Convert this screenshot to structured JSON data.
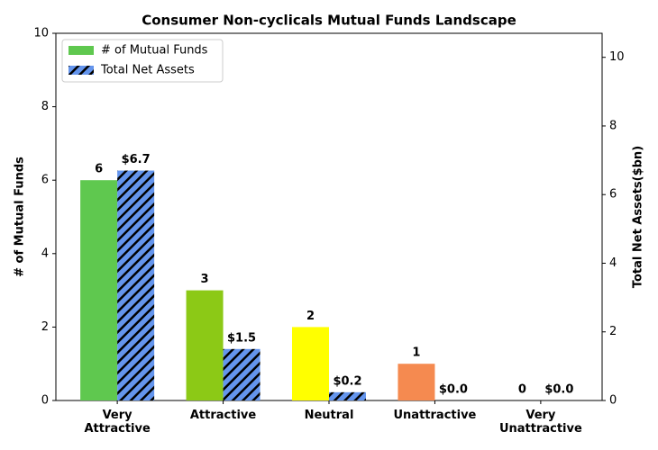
{
  "chart_data": {
    "type": "bar",
    "title": "Consumer Non-cyclicals Mutual Funds Landscape",
    "categories": [
      "Very\nAttractive",
      "Attractive",
      "Neutral",
      "Unattractive",
      "Very\nUnattractive"
    ],
    "y_label": "# of Mutual Funds",
    "y2_label": "Total Net Assets($bn)",
    "ylim": [
      0,
      10
    ],
    "yticks": [
      0,
      2,
      4,
      6,
      8,
      10
    ],
    "y2lim": [
      0,
      10.7
    ],
    "y2ticks": [
      0,
      2,
      4,
      6,
      8,
      10
    ],
    "legend": "upper left",
    "series": [
      {
        "name": "# of Mutual Funds",
        "color": [
          "#5fc84f",
          "#8cc916",
          "#ffff00",
          "#f58a50",
          "#c0c0c0"
        ],
        "legend_color": "#5fc84f",
        "values": [
          6,
          3,
          2,
          1,
          0
        ]
      },
      {
        "name": "Total Net Assets",
        "color": "#6495ed",
        "hatch": true,
        "axis": "y2",
        "values": [
          6.7,
          1.5,
          0.24,
          0,
          0
        ],
        "value_labels": [
          "$6.7",
          "$1.5",
          "$0.2",
          "$0.0",
          "$0.0"
        ]
      }
    ]
  }
}
